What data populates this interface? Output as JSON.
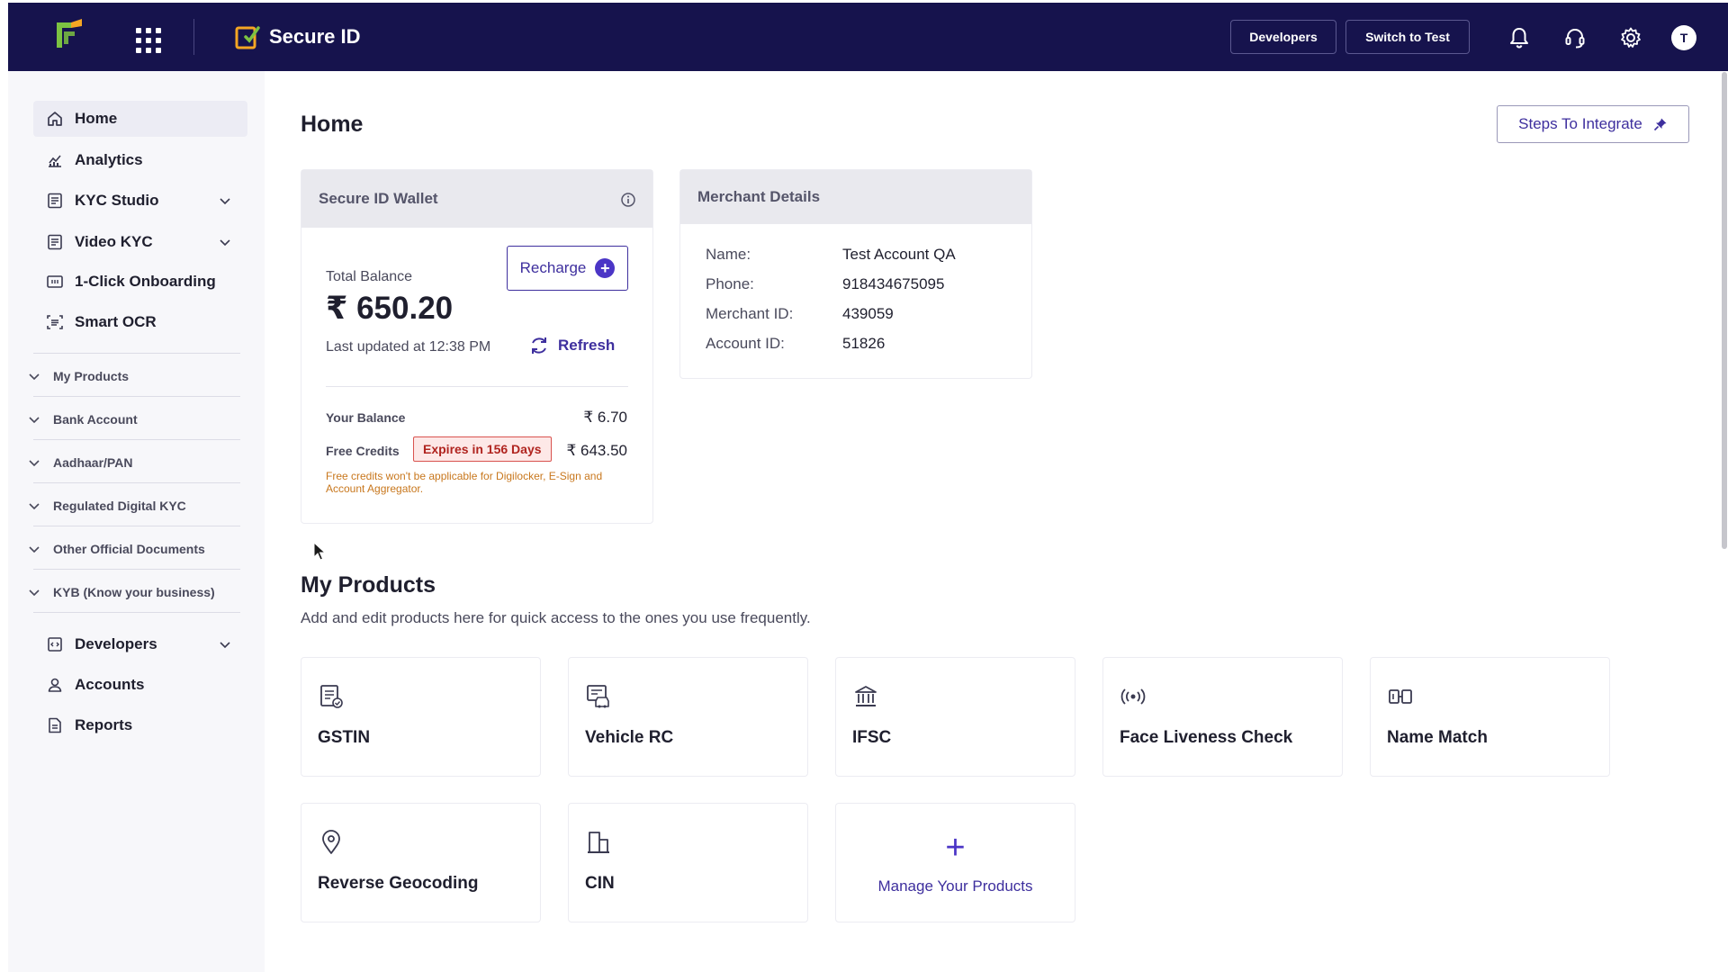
{
  "topbar": {
    "product_name": "Secure ID",
    "developers_btn": "Developers",
    "switch_btn": "Switch to Test",
    "avatar_initial": "T",
    "icons": [
      "apps-grid-icon",
      "bell-icon",
      "support-headset-icon",
      "gear-icon"
    ],
    "colors": {
      "bar_bg": "#16134d",
      "logo_green": "#7cc242",
      "logo_orange": "#f4a623"
    }
  },
  "sidebar": {
    "items": [
      {
        "label": "Home",
        "icon": "home-icon",
        "active": true
      },
      {
        "label": "Analytics",
        "icon": "analytics-icon"
      },
      {
        "label": "KYC Studio",
        "icon": "kyc-studio-icon",
        "expandable": true
      },
      {
        "label": "Video KYC",
        "icon": "video-kyc-icon",
        "expandable": true
      },
      {
        "label": "1-Click Onboarding",
        "icon": "onboarding-icon"
      },
      {
        "label": "Smart OCR",
        "icon": "ocr-icon"
      }
    ],
    "groups": [
      "My Products",
      "Bank Account",
      "Aadhaar/PAN",
      "Regulated Digital KYC",
      "Other Official Documents",
      "KYB (Know your business)"
    ],
    "bottom_items": [
      {
        "label": "Developers",
        "icon": "developers-icon",
        "expandable": true
      },
      {
        "label": "Accounts",
        "icon": "user-icon"
      },
      {
        "label": "Reports",
        "icon": "reports-icon"
      }
    ]
  },
  "main": {
    "title": "Home",
    "steps_btn": "Steps To Integrate",
    "wallet": {
      "title": "Secure ID Wallet",
      "total_balance_label": "Total Balance",
      "total_balance_value": "₹ 650.20",
      "recharge_btn": "Recharge",
      "last_updated": "Last updated at 12:38 PM",
      "refresh_btn": "Refresh",
      "your_balance_label": "Your Balance",
      "your_balance_value": "₹ 6.70",
      "free_credits_label": "Free Credits",
      "expires_badge": "Expires in 156 Days",
      "free_credits_value": "₹ 643.50",
      "free_credits_note": "Free credits won't be applicable for Digilocker, E-Sign and Account Aggregator."
    },
    "merchant": {
      "title": "Merchant Details",
      "rows": [
        {
          "key": "Name:",
          "value": "Test Account QA"
        },
        {
          "key": "Phone:",
          "value": "918434675095"
        },
        {
          "key": "Merchant ID:",
          "value": "439059"
        },
        {
          "key": "Account ID:",
          "value": "51826"
        }
      ]
    },
    "my_products": {
      "title": "My Products",
      "subtitle": "Add and edit products here for quick access to the ones you use frequently.",
      "items": [
        {
          "label": "GSTIN",
          "icon": "gstin-document-icon"
        },
        {
          "label": "Vehicle RC",
          "icon": "vehicle-rc-icon"
        },
        {
          "label": "IFSC",
          "icon": "bank-icon"
        },
        {
          "label": "Face Liveness Check",
          "icon": "liveness-icon"
        },
        {
          "label": "Name Match",
          "icon": "name-match-icon"
        },
        {
          "label": "Reverse Geocoding",
          "icon": "location-pin-icon"
        },
        {
          "label": "CIN",
          "icon": "building-icon"
        }
      ],
      "manage_label": "Manage Your Products"
    }
  }
}
